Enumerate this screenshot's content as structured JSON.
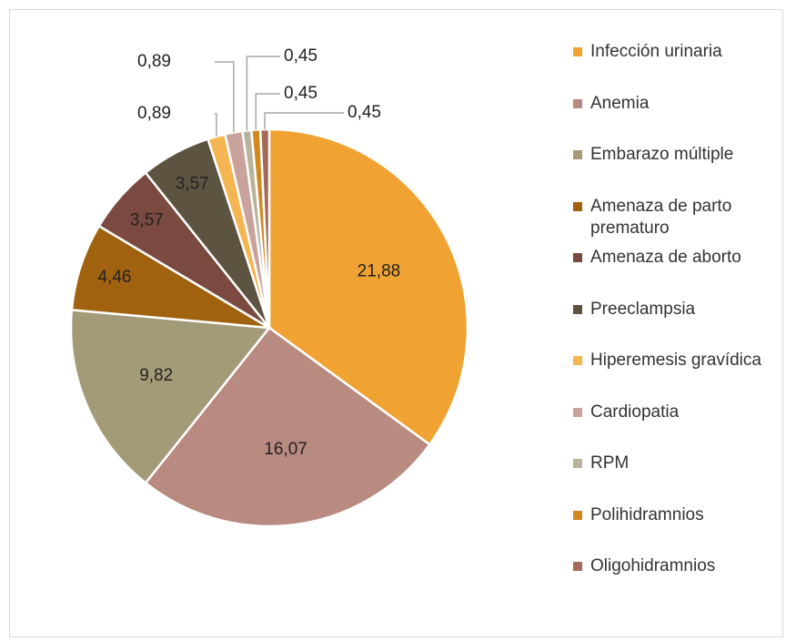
{
  "chart_data": {
    "type": "pie",
    "categories": [
      "Infección urinaria",
      "Anemia",
      "Embarazo múltiple",
      "Amenaza de parto prematuro",
      "Amenaza de aborto",
      "Preeclampsia",
      "Hiperemesis gravídica",
      "Cardiopatia",
      "RPM",
      "Polihidramnios",
      "Oligohidramnios"
    ],
    "values": [
      21.88,
      16.07,
      9.82,
      4.46,
      3.57,
      3.57,
      0.89,
      0.89,
      0.45,
      0.45,
      0.45
    ],
    "value_labels": [
      "21,88",
      "16,07",
      "9,82",
      "4,46",
      "3,57",
      "3,57",
      "0,89",
      "0,89",
      "0,45",
      "0,45",
      "0,45"
    ],
    "colors": [
      "#F0A232",
      "#B98A7F",
      "#A39A77",
      "#A0620F",
      "#7A4A40",
      "#5C5440",
      "#F5B553",
      "#C9A39B",
      "#B8B39A",
      "#D1891F",
      "#A56A5C"
    ],
    "legend": "right"
  }
}
